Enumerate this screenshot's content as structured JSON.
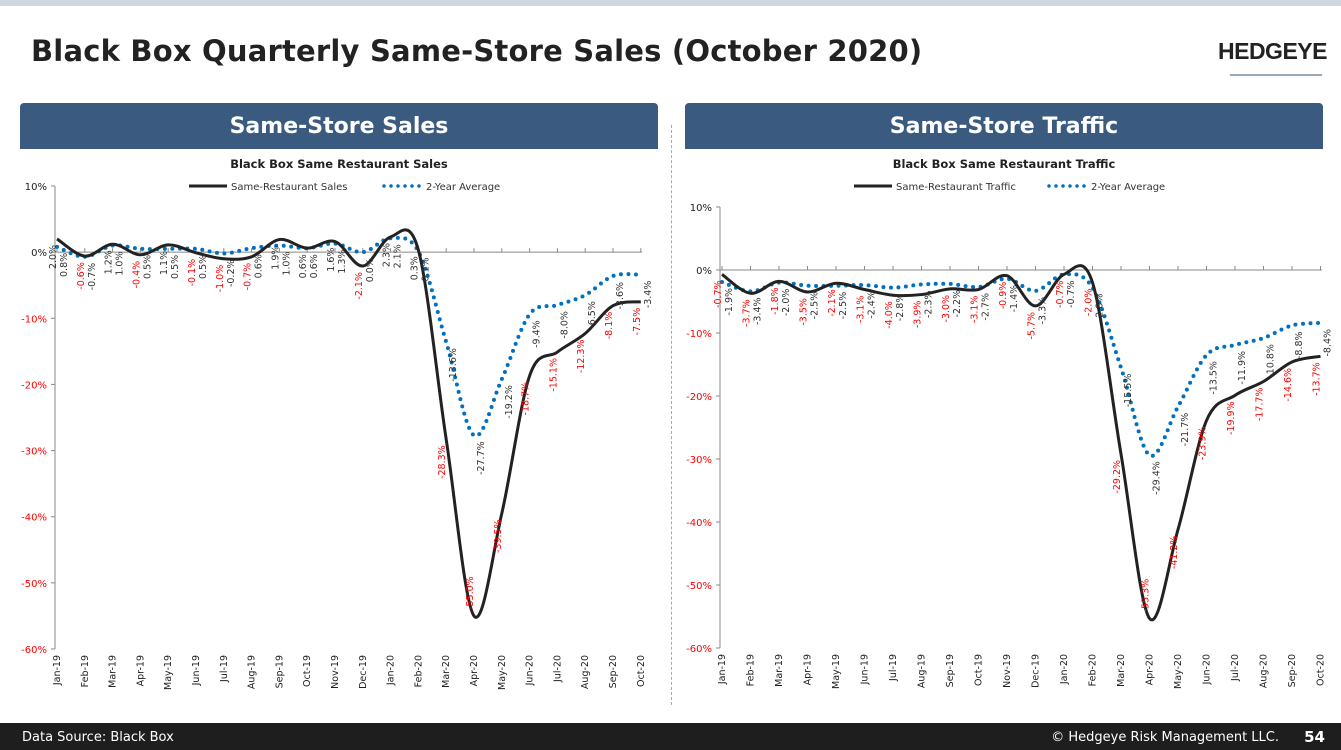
{
  "header": {
    "title": "Black Box Quarterly Same-Store Sales (October 2020)",
    "logo": "HEDGEYE"
  },
  "panels": [
    {
      "label": "Same-Store Sales"
    },
    {
      "label": "Same-Store Traffic"
    }
  ],
  "footer": {
    "source": "Data Source: Black Box",
    "copyright": "© Hedgeye Risk Management LLC.",
    "page": "54"
  },
  "colors": {
    "header_bg": "#3b5a80",
    "main_line": "#222222",
    "avg_line": "#0070c0",
    "negative_label": "#ff0000"
  },
  "chart_data": [
    {
      "type": "line",
      "title": "Black Box Same Restaurant Sales",
      "categories": [
        "Jan-19",
        "Feb-19",
        "Mar-19",
        "Apr-19",
        "May-19",
        "Jun-19",
        "Jul-19",
        "Aug-19",
        "Sep-19",
        "Oct-19",
        "Nov-19",
        "Dec-19",
        "Jan-20",
        "Feb-20",
        "Mar-20",
        "Apr-20",
        "May-20",
        "Jun-20",
        "Jul-20",
        "Aug-20",
        "Sep-20",
        "Oct-20"
      ],
      "ylim": [
        -60,
        10
      ],
      "yticks": [
        "10%",
        "0%",
        "-10%",
        "-20%",
        "-30%",
        "-40%",
        "-50%",
        "-60%"
      ],
      "legend_position": "top",
      "series": [
        {
          "name": "Same-Restaurant Sales",
          "style": "solid",
          "values": [
            2.0,
            -0.6,
            1.2,
            -0.4,
            1.1,
            -0.1,
            -1.0,
            -0.7,
            1.9,
            0.6,
            1.6,
            -2.1,
            2.3,
            0.3,
            -28.3,
            -55.0,
            -39.5,
            -18.7,
            -15.1,
            -12.3,
            -8.1,
            -7.5
          ]
        },
        {
          "name": "2-Year Average",
          "style": "dotted",
          "values": [
            0.8,
            -0.7,
            1.0,
            0.5,
            0.5,
            0.5,
            -0.2,
            0.6,
            1.0,
            0.6,
            1.3,
            0.0,
            2.1,
            0.1,
            -13.6,
            -27.7,
            -19.2,
            -9.4,
            -8.0,
            -6.5,
            -3.6,
            -3.4
          ]
        }
      ]
    },
    {
      "type": "line",
      "title": "Black Box Same Restaurant Traffic",
      "categories": [
        "Jan-19",
        "Feb-19",
        "Mar-19",
        "Apr-19",
        "May-19",
        "Jun-19",
        "Jul-19",
        "Aug-19",
        "Sep-19",
        "Oct-19",
        "Nov-19",
        "Dec-19",
        "Jan-20",
        "Feb-20",
        "Mar-20",
        "Apr-20",
        "May-20",
        "Jun-20",
        "Jul-20",
        "Aug-20",
        "Sep-20",
        "Oct-20"
      ],
      "ylim": [
        -60,
        10
      ],
      "yticks": [
        "10%",
        "0%",
        "-10%",
        "-20%",
        "-30%",
        "-40%",
        "-50%",
        "-60%"
      ],
      "legend_position": "top",
      "series": [
        {
          "name": "Same-Restaurant Traffic",
          "style": "solid",
          "values": [
            -0.7,
            -3.7,
            -1.8,
            -3.5,
            -2.1,
            -3.1,
            -4.0,
            -3.9,
            -3.0,
            -3.1,
            -0.9,
            -5.7,
            -0.7,
            -2.0,
            -29.2,
            -55.3,
            -41.2,
            -23.9,
            -19.9,
            -17.7,
            -14.6,
            -13.7
          ]
        },
        {
          "name": "2-Year Average",
          "style": "dotted",
          "values": [
            -1.9,
            -3.4,
            -2.0,
            -2.5,
            -2.5,
            -2.4,
            -2.8,
            -2.3,
            -2.2,
            -2.7,
            -1.4,
            -3.3,
            -0.7,
            -2.8,
            -15.5,
            -29.4,
            -21.7,
            -13.5,
            -11.9,
            -10.8,
            -8.8,
            -8.4
          ]
        }
      ]
    }
  ]
}
